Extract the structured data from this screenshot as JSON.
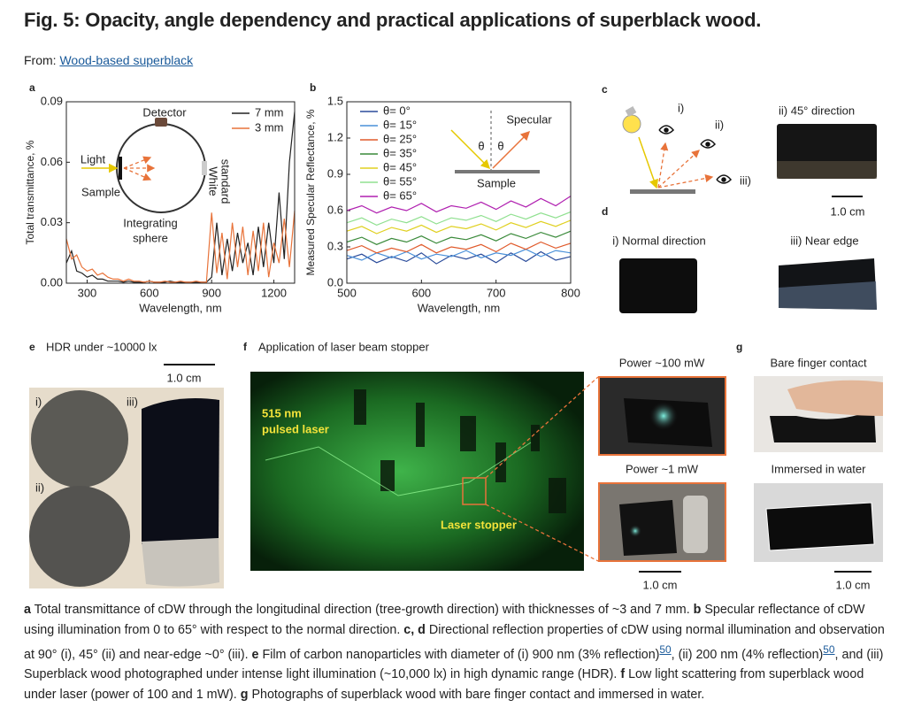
{
  "header": {
    "title": "Fig. 5: Opacity, angle dependency and practical applications of superblack wood.",
    "from_label": "From:",
    "from_link": "Wood-based superblack"
  },
  "panel_a": {
    "label": "a",
    "type": "line",
    "x_label": "Wavelength, nm",
    "y_label": "Total transmittance, %",
    "xlim": [
      200,
      1300
    ],
    "ylim": [
      0,
      0.09
    ],
    "xticks": [
      300,
      600,
      900,
      1200
    ],
    "yticks": [
      {
        "value": 0,
        "label": "0.00"
      },
      {
        "value": 0.03,
        "label": "0.03"
      },
      {
        "value": 0.06,
        "label": "0.06"
      },
      {
        "value": 0.09,
        "label": "0.09"
      }
    ],
    "x": [
      200,
      225,
      250,
      275,
      300,
      325,
      350,
      375,
      400,
      425,
      450,
      475,
      500,
      525,
      550,
      575,
      600,
      625,
      650,
      675,
      700,
      725,
      750,
      775,
      800,
      825,
      850,
      875,
      900,
      925,
      950,
      975,
      1000,
      1025,
      1050,
      1075,
      1100,
      1125,
      1150,
      1175,
      1200,
      1225,
      1250,
      1275,
      1300
    ],
    "series": [
      {
        "name": "7 mm",
        "color": "#222222",
        "values": [
          0.01,
          0.016,
          0.006,
          0.005,
          0.003,
          0.004,
          0.002,
          0.002,
          0.001,
          0.001,
          0.001,
          0.0005,
          0.001,
          0.0005,
          0.0005,
          0.0005,
          0.001,
          0.0005,
          0.0005,
          0.0005,
          0.001,
          0.0005,
          0.0005,
          0.0005,
          0.0005,
          0.0005,
          0.0005,
          0.0005,
          0.003,
          0.03,
          0.004,
          0.022,
          0.006,
          0.025,
          0.01,
          0.02,
          0.004,
          0.028,
          0.008,
          0.03,
          0.01,
          0.045,
          0.012,
          0.06,
          0.085
        ]
      },
      {
        "name": "3 mm",
        "color": "#e8733a",
        "values": [
          0.022,
          0.012,
          0.014,
          0.008,
          0.006,
          0.007,
          0.004,
          0.005,
          0.003,
          0.002,
          0.002,
          0.001,
          0.002,
          0.001,
          0.001,
          0.0005,
          0.001,
          0.0005,
          0.0005,
          0.001,
          0.0005,
          0.0005,
          0.001,
          0.0005,
          0.0005,
          0.001,
          0.0005,
          0.0005,
          0.035,
          0.005,
          0.025,
          0.002,
          0.03,
          0.008,
          0.028,
          0.004,
          0.026,
          0.006,
          0.03,
          0.003,
          0.02,
          0.01,
          0.032,
          0.008,
          0.036
        ]
      }
    ],
    "annotations": {
      "detector": "Detector",
      "light": "Light",
      "sample": "Sample",
      "white_standard": [
        "White",
        "standard"
      ],
      "integrating_sphere": [
        "Integrating",
        "sphere"
      ]
    }
  },
  "panel_b": {
    "label": "b",
    "type": "line",
    "x_label": "Wavelength, nm",
    "y_label": "Measured Specular Reflectance, %",
    "xlim": [
      500,
      800
    ],
    "ylim": [
      0,
      1.5
    ],
    "xticks": [
      500,
      600,
      700,
      800
    ],
    "yticks": [
      {
        "value": 0,
        "label": "0.0"
      },
      0.3,
      0.6,
      0.9,
      1.2,
      1.5
    ],
    "x": [
      500,
      520,
      540,
      560,
      580,
      600,
      620,
      640,
      660,
      680,
      700,
      720,
      740,
      760,
      780,
      800
    ],
    "series": [
      {
        "name": "θ= 0°",
        "color": "#2b4c9b",
        "values": [
          0.2,
          0.24,
          0.17,
          0.22,
          0.18,
          0.25,
          0.16,
          0.23,
          0.2,
          0.24,
          0.17,
          0.25,
          0.18,
          0.26,
          0.19,
          0.22
        ]
      },
      {
        "name": "θ= 15°",
        "color": "#4a90d9",
        "values": [
          0.23,
          0.19,
          0.25,
          0.21,
          0.26,
          0.2,
          0.24,
          0.22,
          0.27,
          0.21,
          0.25,
          0.23,
          0.28,
          0.22,
          0.27,
          0.25
        ]
      },
      {
        "name": "θ= 25°",
        "color": "#e05a2b",
        "values": [
          0.27,
          0.31,
          0.25,
          0.29,
          0.26,
          0.32,
          0.25,
          0.3,
          0.28,
          0.32,
          0.26,
          0.33,
          0.28,
          0.34,
          0.29,
          0.33
        ]
      },
      {
        "name": "θ= 35°",
        "color": "#3a8a3a",
        "values": [
          0.34,
          0.38,
          0.32,
          0.37,
          0.34,
          0.39,
          0.33,
          0.38,
          0.36,
          0.4,
          0.35,
          0.41,
          0.37,
          0.42,
          0.38,
          0.43
        ]
      },
      {
        "name": "θ= 45°",
        "color": "#e0d020",
        "values": [
          0.43,
          0.47,
          0.41,
          0.46,
          0.43,
          0.48,
          0.42,
          0.47,
          0.45,
          0.49,
          0.44,
          0.5,
          0.46,
          0.51,
          0.47,
          0.52
        ]
      },
      {
        "name": "θ= 55°",
        "color": "#90e090",
        "values": [
          0.5,
          0.54,
          0.48,
          0.53,
          0.5,
          0.55,
          0.49,
          0.54,
          0.52,
          0.56,
          0.51,
          0.57,
          0.53,
          0.58,
          0.54,
          0.59
        ]
      },
      {
        "name": "θ= 65°",
        "color": "#b020b0",
        "values": [
          0.6,
          0.64,
          0.58,
          0.63,
          0.6,
          0.66,
          0.59,
          0.64,
          0.62,
          0.67,
          0.61,
          0.68,
          0.63,
          0.7,
          0.64,
          0.72
        ]
      }
    ],
    "annotations": {
      "specular": "Specular",
      "theta": "θ",
      "sample": "Sample"
    }
  },
  "panel_c": {
    "label": "c",
    "observers": [
      "i)",
      "ii)",
      "iii)"
    ],
    "photo_title": "ii) 45° direction",
    "scale_bar": "1.0 cm"
  },
  "panel_d": {
    "label": "d",
    "photo_titles": [
      "i) Normal direction",
      "iii) Near edge"
    ]
  },
  "panel_e": {
    "label": "e",
    "title": "HDR under ~10000 lx",
    "scale_bar": "1.0 cm",
    "photo_labels": [
      "i)",
      "ii)",
      "iii)"
    ]
  },
  "panel_f": {
    "label": "f",
    "title": "Application of laser beam stopper",
    "laser": [
      "515 nm",
      "pulsed laser"
    ],
    "stopper": "Laser stopper",
    "insets": [
      "Power ~100 mW",
      "Power ~1 mW"
    ],
    "scale_bar": "1.0 cm"
  },
  "panel_g": {
    "label": "g",
    "titles": [
      "Bare finger contact",
      "Immersed in water"
    ],
    "scale_bar": "1.0 cm"
  },
  "caption": {
    "runs": [
      {
        "style": "bold",
        "text": "a"
      },
      {
        "style": "normal",
        "text": " Total transmittance of cDW through the longitudinal direction (tree-growth direction) with thicknesses of ~3 and 7 mm. "
      },
      {
        "style": "bold",
        "text": "b"
      },
      {
        "style": "normal",
        "text": " Specular reflectance of cDW using illumination from 0 to 65° with respect to the normal direction. "
      },
      {
        "style": "bold",
        "text": "c, d"
      },
      {
        "style": "normal",
        "text": " Directional reflection properties of cDW using normal illumination and observation at 90° (i), 45° (ii) and near-edge ~0° (iii). "
      },
      {
        "style": "bold",
        "text": "e"
      },
      {
        "style": "normal",
        "text": " Film of carbon nanoparticles with diameter of (i) 900 nm (3% reflection)"
      },
      {
        "style": "ref",
        "text": "50"
      },
      {
        "style": "normal",
        "text": ", (ii) 200 nm (4% reflection)"
      },
      {
        "style": "ref",
        "text": "50"
      },
      {
        "style": "normal",
        "text": ", and (iii) Superblack wood photographed under intense light illumination (~10,000 lx) in high dynamic range (HDR). "
      },
      {
        "style": "bold",
        "text": "f"
      },
      {
        "style": "normal",
        "text": " Low light scattering from superblack wood under laser (power of 100 and 1 mW). "
      },
      {
        "style": "bold",
        "text": "g"
      },
      {
        "style": "normal",
        "text": " Photographs of superblack wood with bare finger contact and immersed in water."
      }
    ]
  }
}
